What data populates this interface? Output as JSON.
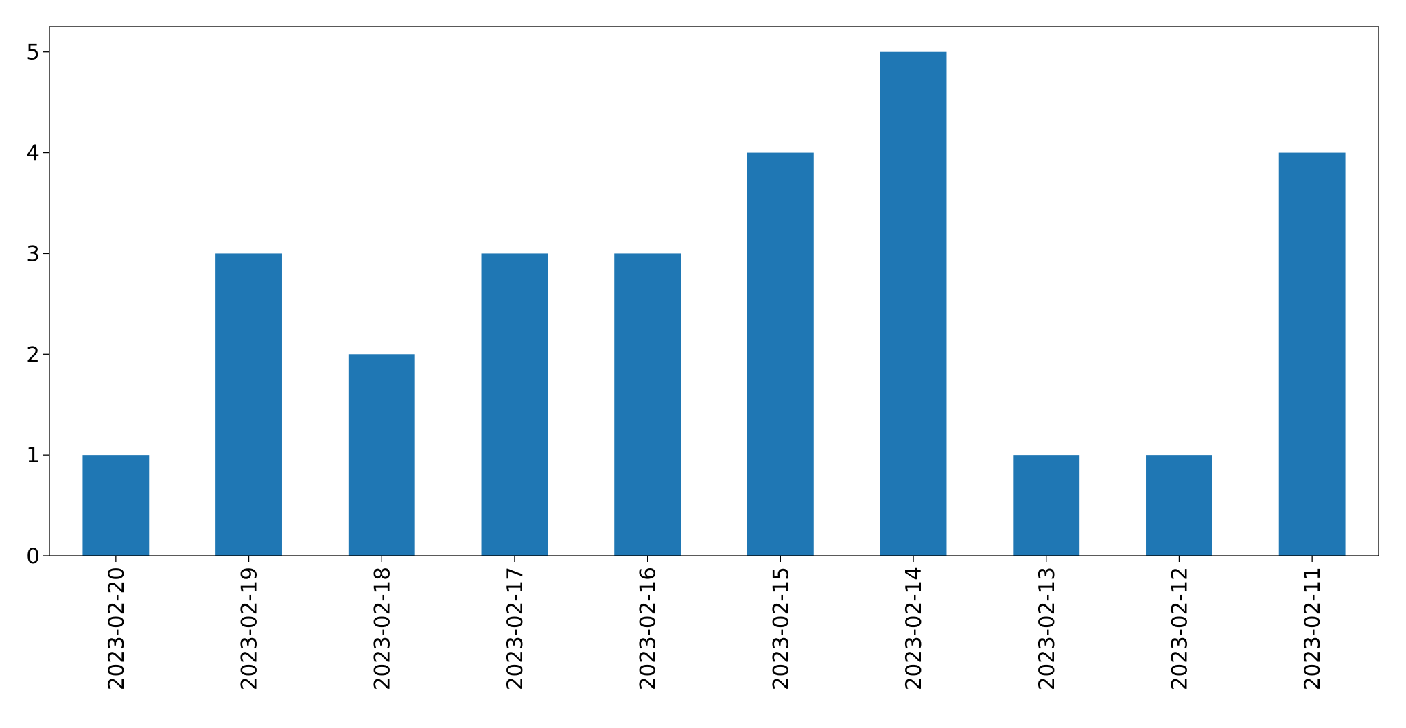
{
  "chart_data": {
    "type": "bar",
    "categories": [
      "2023-02-20",
      "2023-02-19",
      "2023-02-18",
      "2023-02-17",
      "2023-02-16",
      "2023-02-15",
      "2023-02-14",
      "2023-02-13",
      "2023-02-12",
      "2023-02-11"
    ],
    "values": [
      1,
      3,
      2,
      3,
      3,
      4,
      5,
      1,
      1,
      4
    ],
    "color": "#1f77b4",
    "ylim": [
      0,
      5.25
    ],
    "yticks": [
      0,
      1,
      2,
      3,
      4,
      5
    ],
    "grid": false
  }
}
